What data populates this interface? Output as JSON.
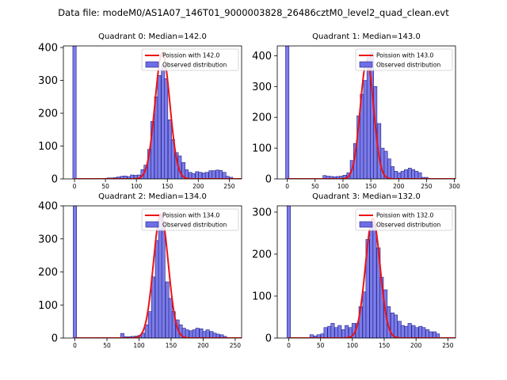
{
  "figure_title": "Data file: modeM0/AS1A07_146T01_9000003828_26486cztM0_level2_quad_clean.evt",
  "colors": {
    "bar_fill": "#6e6ee6",
    "bar_edge": "#1f1f8a",
    "curve": "#ee1111"
  },
  "chart_data": [
    {
      "type": "bar",
      "title": "Quadrant 0: Median=142.0",
      "legend": [
        "Poission with 142.0",
        "Observed distribution"
      ],
      "legend_position": "top-right",
      "xlim": [
        -18,
        270
      ],
      "ylim": [
        0,
        405
      ],
      "xticks": [
        0,
        50,
        100,
        150,
        200,
        250
      ],
      "yticks": [
        0,
        100,
        200,
        300,
        400
      ],
      "bin_width": 5.5,
      "bars": [
        [
          0,
          405
        ],
        [
          55,
          3
        ],
        [
          60,
          3
        ],
        [
          66,
          4
        ],
        [
          71,
          6
        ],
        [
          77,
          8
        ],
        [
          82,
          9
        ],
        [
          88,
          7
        ],
        [
          93,
          12
        ],
        [
          99,
          11
        ],
        [
          104,
          12
        ],
        [
          110,
          28
        ],
        [
          115,
          42
        ],
        [
          121,
          90
        ],
        [
          126,
          175
        ],
        [
          132,
          250
        ],
        [
          137,
          315
        ],
        [
          143,
          345
        ],
        [
          148,
          305
        ],
        [
          154,
          180
        ],
        [
          159,
          120
        ],
        [
          165,
          80
        ],
        [
          170,
          70
        ],
        [
          176,
          50
        ],
        [
          181,
          28
        ],
        [
          187,
          20
        ],
        [
          192,
          16
        ],
        [
          198,
          22
        ],
        [
          203,
          20
        ],
        [
          209,
          18
        ],
        [
          214,
          20
        ],
        [
          220,
          25
        ],
        [
          225,
          25
        ],
        [
          231,
          27
        ],
        [
          236,
          26
        ],
        [
          242,
          20
        ],
        [
          247,
          8
        ],
        [
          253,
          5
        ]
      ],
      "curve_mu": 142.0,
      "curve_peak": 385
    },
    {
      "type": "bar",
      "title": "Quadrant 1: Median=143.0",
      "legend": [
        "Poission with 143.0",
        "Observed distribution"
      ],
      "legend_position": "top-right",
      "xlim": [
        -18,
        302
      ],
      "ylim": [
        0,
        432
      ],
      "xticks": [
        0,
        50,
        100,
        150,
        200,
        250,
        300
      ],
      "yticks": [
        0,
        100,
        200,
        300,
        400
      ],
      "bin_width": 6.1,
      "bars": [
        [
          0,
          432
        ],
        [
          67,
          11
        ],
        [
          73,
          9
        ],
        [
          79,
          8
        ],
        [
          85,
          7
        ],
        [
          91,
          8
        ],
        [
          97,
          9
        ],
        [
          103,
          12
        ],
        [
          110,
          20
        ],
        [
          116,
          60
        ],
        [
          122,
          115
        ],
        [
          128,
          205
        ],
        [
          134,
          275
        ],
        [
          140,
          320
        ],
        [
          146,
          395
        ],
        [
          152,
          410
        ],
        [
          158,
          300
        ],
        [
          165,
          180
        ],
        [
          171,
          100
        ],
        [
          177,
          90
        ],
        [
          183,
          65
        ],
        [
          189,
          40
        ],
        [
          195,
          25
        ],
        [
          201,
          20
        ],
        [
          207,
          25
        ],
        [
          213,
          30
        ],
        [
          220,
          35
        ],
        [
          226,
          30
        ],
        [
          232,
          25
        ],
        [
          238,
          20
        ],
        [
          244,
          5
        ],
        [
          250,
          5
        ]
      ],
      "curve_mu": 143.0,
      "curve_peak": 385
    },
    {
      "type": "bar",
      "title": "Quadrant 2: Median=134.0",
      "legend": [
        "Poission with 134.0",
        "Observed distribution"
      ],
      "legend_position": "top-right",
      "xlim": [
        -18,
        260
      ],
      "ylim": [
        0,
        400
      ],
      "xticks": [
        0,
        50,
        100,
        150,
        200,
        250
      ],
      "yticks": [
        0,
        100,
        200,
        300,
        400
      ],
      "bin_width": 5.3,
      "bars": [
        [
          0,
          400
        ],
        [
          74,
          14
        ],
        [
          80,
          4
        ],
        [
          85,
          4
        ],
        [
          90,
          5
        ],
        [
          96,
          6
        ],
        [
          101,
          8
        ],
        [
          106,
          15
        ],
        [
          112,
          40
        ],
        [
          117,
          80
        ],
        [
          122,
          185
        ],
        [
          128,
          295
        ],
        [
          133,
          375
        ],
        [
          138,
          350
        ],
        [
          144,
          170
        ],
        [
          149,
          120
        ],
        [
          154,
          80
        ],
        [
          160,
          55
        ],
        [
          165,
          40
        ],
        [
          170,
          30
        ],
        [
          175,
          25
        ],
        [
          181,
          22
        ],
        [
          186,
          25
        ],
        [
          191,
          30
        ],
        [
          197,
          28
        ],
        [
          202,
          20
        ],
        [
          207,
          25
        ],
        [
          213,
          20
        ],
        [
          218,
          15
        ],
        [
          223,
          12
        ],
        [
          229,
          10
        ],
        [
          234,
          5
        ]
      ],
      "curve_mu": 134.0,
      "curve_peak": 375
    },
    {
      "type": "bar",
      "title": "Quadrant 3: Median=132.0",
      "legend": [
        "Poission with 132.0",
        "Observed distribution"
      ],
      "legend_position": "top-right",
      "xlim": [
        -18,
        262
      ],
      "ylim": [
        0,
        315
      ],
      "xticks": [
        0,
        50,
        100,
        150,
        200,
        250
      ],
      "yticks": [
        0,
        100,
        200,
        300
      ],
      "bin_width": 5.5,
      "bars": [
        [
          0,
          315
        ],
        [
          36,
          8
        ],
        [
          42,
          5
        ],
        [
          47,
          8
        ],
        [
          53,
          10
        ],
        [
          58,
          25
        ],
        [
          64,
          28
        ],
        [
          69,
          35
        ],
        [
          75,
          25
        ],
        [
          80,
          30
        ],
        [
          86,
          20
        ],
        [
          91,
          30
        ],
        [
          97,
          25
        ],
        [
          102,
          35
        ],
        [
          108,
          35
        ],
        [
          113,
          75
        ],
        [
          119,
          110
        ],
        [
          124,
          235
        ],
        [
          130,
          265
        ],
        [
          135,
          270
        ],
        [
          141,
          215
        ],
        [
          146,
          145
        ],
        [
          152,
          115
        ],
        [
          157,
          75
        ],
        [
          163,
          60
        ],
        [
          168,
          55
        ],
        [
          174,
          40
        ],
        [
          179,
          30
        ],
        [
          185,
          28
        ],
        [
          190,
          35
        ],
        [
          196,
          30
        ],
        [
          201,
          25
        ],
        [
          207,
          28
        ],
        [
          212,
          25
        ],
        [
          218,
          20
        ],
        [
          223,
          15
        ],
        [
          229,
          15
        ],
        [
          234,
          10
        ]
      ],
      "curve_mu": 132.0,
      "curve_peak": 285
    }
  ]
}
